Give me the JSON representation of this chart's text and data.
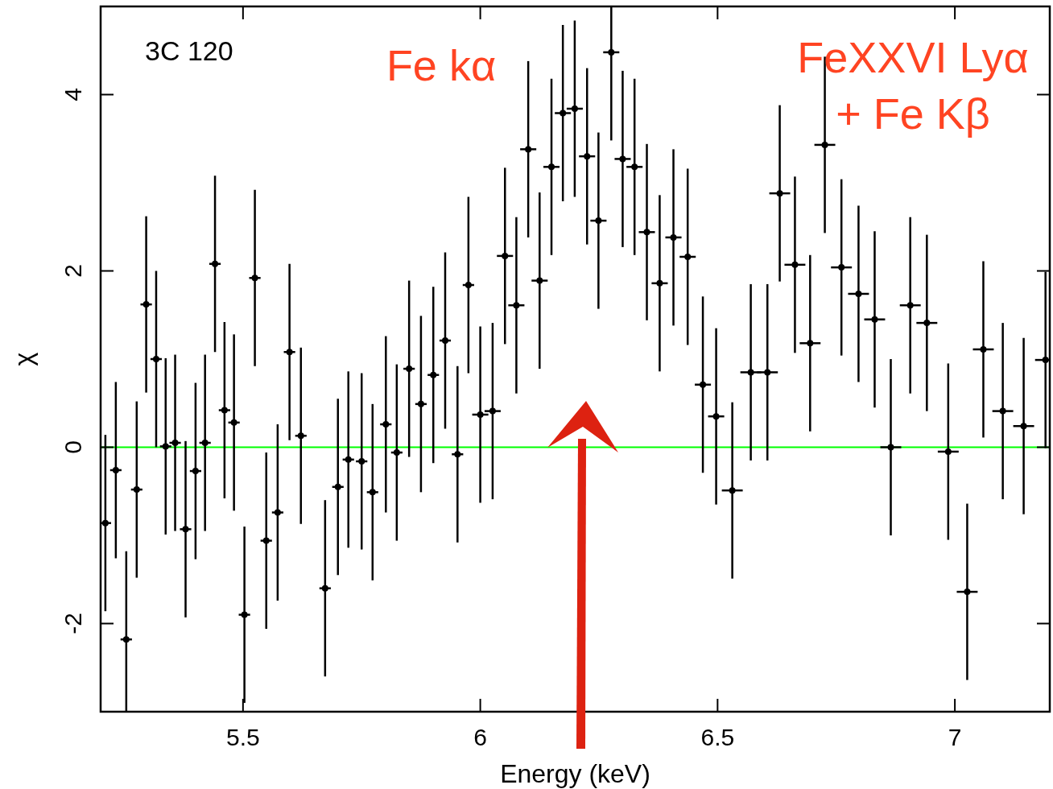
{
  "chart_data": {
    "type": "scatter",
    "xlabel": "Energy (keV)",
    "ylabel": "χ",
    "annotations": [
      "3C 120",
      "Fe kα",
      "FeXXVI Lyα\n+ Fe Kβ"
    ],
    "xlim": [
      5.2,
      7.2
    ],
    "xticks": [
      5.5,
      6,
      6.5,
      7
    ],
    "ylim": [
      -3,
      5
    ],
    "yticks": [
      -2,
      0,
      2,
      4
    ],
    "grid": false,
    "marker": "circle",
    "ref_lines": [
      {
        "axis": "y",
        "value": 0,
        "color": "#00ff00"
      }
    ],
    "series": [
      {
        "color": "#000000",
        "x": [
          5.21,
          5.232,
          5.254,
          5.276,
          5.296,
          5.317,
          5.337,
          5.357,
          5.379,
          5.4,
          5.42,
          5.441,
          5.461,
          5.481,
          5.503,
          5.525,
          5.549,
          5.573,
          5.598,
          5.622,
          5.673,
          5.7,
          5.722,
          5.75,
          5.773,
          5.801,
          5.824,
          5.85,
          5.875,
          5.901,
          5.926,
          5.952,
          5.975,
          6.0,
          6.026,
          6.052,
          6.076,
          6.101,
          6.125,
          6.15,
          6.174,
          6.199,
          6.225,
          6.249,
          6.276,
          6.3,
          6.325,
          6.351,
          6.378,
          6.407,
          6.437,
          6.469,
          6.497,
          6.531,
          6.57,
          6.605,
          6.631,
          6.663,
          6.695,
          6.726,
          6.761,
          6.797,
          6.831,
          6.865,
          6.906,
          6.941,
          6.986,
          7.026,
          7.06,
          7.101,
          7.145,
          7.191
        ],
        "values": [
          -0.86,
          -0.26,
          -2.18,
          -0.48,
          1.62,
          1.0,
          0.01,
          0.05,
          -0.93,
          -0.27,
          0.05,
          2.08,
          0.42,
          0.28,
          -1.9,
          1.92,
          -1.06,
          -0.74,
          1.08,
          0.13,
          -1.6,
          -0.45,
          -0.14,
          -0.16,
          -0.51,
          0.26,
          -0.06,
          0.89,
          0.49,
          0.82,
          1.21,
          -0.08,
          1.84,
          0.37,
          0.41,
          2.17,
          1.61,
          3.38,
          1.89,
          3.18,
          3.79,
          3.84,
          3.3,
          2.57,
          4.48,
          3.27,
          3.18,
          2.44,
          1.86,
          2.38,
          2.16,
          0.71,
          0.35,
          -0.49,
          0.85,
          0.85,
          2.88,
          2.07,
          1.18,
          3.43,
          2.04,
          1.74,
          1.45,
          0.0,
          1.61,
          1.41,
          -0.05,
          -1.64,
          1.11,
          0.41,
          0.24,
          0.99
        ],
        "errors": [
          1,
          1,
          [
            -3,
            -1.18
          ],
          1,
          1,
          1,
          1,
          1,
          1,
          1,
          1,
          1,
          1,
          1,
          1,
          1,
          1,
          1,
          1,
          1,
          1,
          1,
          1,
          1,
          1,
          1,
          1,
          1,
          1,
          1,
          1,
          1,
          1,
          1,
          1,
          1,
          1,
          1,
          1,
          1,
          1,
          1,
          1,
          1,
          [
            3.48,
            5
          ],
          1,
          1,
          1,
          1,
          1,
          1,
          1,
          1,
          1,
          1,
          1,
          1,
          1,
          1,
          1,
          1,
          1,
          1,
          1,
          1,
          1,
          1,
          1,
          1,
          1,
          1,
          1
        ],
        "xerrors": [
          0.012,
          0.012,
          0.012,
          0.012,
          0.012,
          0.012,
          0.012,
          0.012,
          0.012,
          0.012,
          0.012,
          0.012,
          0.012,
          0.012,
          0.012,
          0.012,
          0.012,
          0.012,
          0.012,
          0.012,
          0.012,
          0.012,
          0.012,
          0.012,
          0.012,
          0.012,
          0.012,
          0.012,
          0.012,
          0.012,
          0.012,
          0.012,
          0.012,
          0.017,
          0.017,
          0.017,
          0.017,
          0.017,
          0.017,
          0.017,
          0.017,
          0.017,
          0.017,
          0.017,
          0.017,
          0.017,
          0.017,
          0.017,
          0.017,
          0.017,
          0.017,
          0.017,
          0.017,
          0.022,
          0.022,
          0.022,
          0.022,
          0.022,
          0.022,
          0.022,
          0.022,
          0.022,
          0.022,
          0.022,
          0.022,
          0.022,
          0.022,
          0.022,
          0.022,
          0.022,
          0.022,
          0.022
        ]
      }
    ]
  }
}
